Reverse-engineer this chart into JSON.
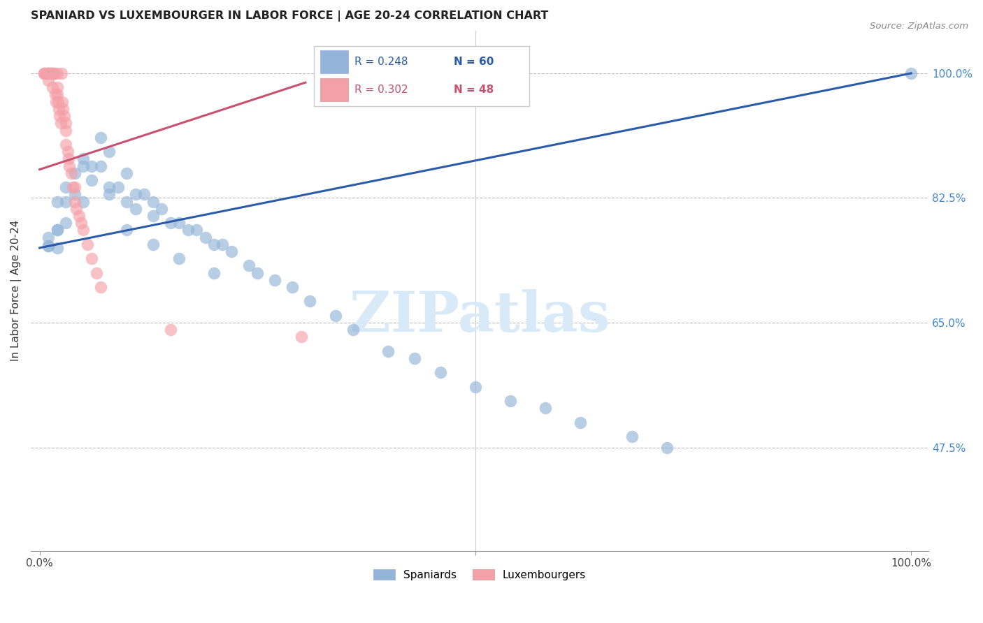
{
  "title": "SPANIARD VS LUXEMBOURGER IN LABOR FORCE | AGE 20-24 CORRELATION CHART",
  "source": "Source: ZipAtlas.com",
  "ylabel": "In Labor Force | Age 20-24",
  "ytick_values": [
    0.475,
    0.65,
    0.825,
    1.0
  ],
  "ytick_labels": [
    "47.5%",
    "65.0%",
    "82.5%",
    "100.0%"
  ],
  "blue_color": "#92B4D8",
  "pink_color": "#F4A0A8",
  "blue_line_color": "#2B5BA8",
  "pink_line_color": "#C85070",
  "legend_blue_r": "R = 0.248",
  "legend_blue_n": "N = 60",
  "legend_pink_r": "R = 0.302",
  "legend_pink_n": "N = 48",
  "blue_intercept": 0.755,
  "blue_slope": 0.245,
  "pink_intercept": 0.865,
  "pink_slope": 0.4,
  "spaniards_x": [
    0.01,
    0.01,
    0.02,
    0.02,
    0.02,
    0.03,
    0.03,
    0.04,
    0.04,
    0.05,
    0.05,
    0.05,
    0.06,
    0.07,
    0.07,
    0.08,
    0.08,
    0.09,
    0.1,
    0.1,
    0.11,
    0.11,
    0.12,
    0.13,
    0.13,
    0.14,
    0.15,
    0.16,
    0.17,
    0.18,
    0.19,
    0.2,
    0.21,
    0.22,
    0.24,
    0.25,
    0.27,
    0.29,
    0.31,
    0.34,
    0.36,
    0.4,
    0.43,
    0.46,
    0.5,
    0.54,
    0.58,
    0.62,
    0.68,
    0.72,
    0.01,
    0.02,
    0.03,
    0.06,
    0.08,
    0.1,
    0.13,
    0.16,
    0.2,
    1.0
  ],
  "spaniards_y": [
    0.758,
    0.77,
    0.755,
    0.78,
    0.82,
    0.79,
    0.84,
    0.83,
    0.86,
    0.87,
    0.88,
    0.82,
    0.85,
    0.87,
    0.91,
    0.89,
    0.83,
    0.84,
    0.86,
    0.82,
    0.83,
    0.81,
    0.83,
    0.82,
    0.8,
    0.81,
    0.79,
    0.79,
    0.78,
    0.78,
    0.77,
    0.76,
    0.76,
    0.75,
    0.73,
    0.72,
    0.71,
    0.7,
    0.68,
    0.66,
    0.64,
    0.61,
    0.6,
    0.58,
    0.56,
    0.54,
    0.53,
    0.51,
    0.49,
    0.475,
    0.758,
    0.78,
    0.82,
    0.87,
    0.84,
    0.78,
    0.76,
    0.74,
    0.72,
    1.0
  ],
  "luxembourgers_x": [
    0.005,
    0.005,
    0.007,
    0.008,
    0.01,
    0.01,
    0.01,
    0.01,
    0.012,
    0.013,
    0.014,
    0.015,
    0.015,
    0.016,
    0.017,
    0.018,
    0.019,
    0.02,
    0.02,
    0.02,
    0.021,
    0.022,
    0.023,
    0.024,
    0.025,
    0.026,
    0.027,
    0.028,
    0.03,
    0.03,
    0.03,
    0.032,
    0.033,
    0.034,
    0.036,
    0.038,
    0.04,
    0.04,
    0.042,
    0.045,
    0.048,
    0.05,
    0.055,
    0.06,
    0.065,
    0.07,
    0.15,
    0.3
  ],
  "luxembourgers_y": [
    1.0,
    1.0,
    1.0,
    1.0,
    1.0,
    1.0,
    1.0,
    0.99,
    1.0,
    1.0,
    1.0,
    1.0,
    0.98,
    1.0,
    1.0,
    0.97,
    0.96,
    1.0,
    0.98,
    0.97,
    0.96,
    0.95,
    0.94,
    0.93,
    1.0,
    0.96,
    0.95,
    0.94,
    0.93,
    0.92,
    0.9,
    0.89,
    0.88,
    0.87,
    0.86,
    0.84,
    0.84,
    0.82,
    0.81,
    0.8,
    0.79,
    0.78,
    0.76,
    0.74,
    0.72,
    0.7,
    0.64,
    0.63
  ]
}
